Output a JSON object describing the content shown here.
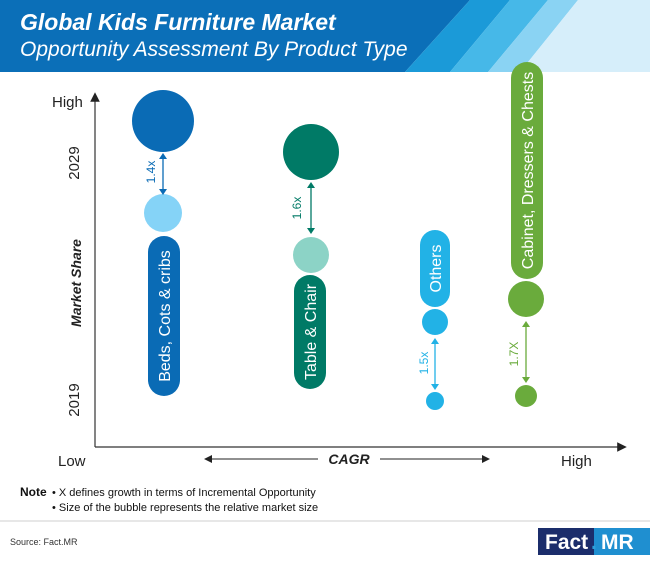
{
  "header": {
    "title": "Global Kids Furniture Market",
    "subtitle": "Opportunity Assessment By Product Type"
  },
  "chart_data": {
    "type": "bubble",
    "x_axis": {
      "label": "CAGR",
      "low_label": "Low",
      "high_label": "High"
    },
    "y_axis": {
      "label": "Market Share",
      "high_label": "High",
      "top_label": "2029",
      "bottom_label": "2019"
    },
    "series": [
      {
        "name": "Beds, Cots & cribs",
        "multiplier": "1.4x",
        "color": "#0a6bb5",
        "color_light": "#85d3f7",
        "color_pill": "#0a6bb5"
      },
      {
        "name": "Table & Chair",
        "multiplier": "1.6x",
        "color": "#007a66",
        "color_light": "#8cd3c6",
        "color_pill": "#007a66"
      },
      {
        "name": "Others",
        "multiplier": "1.5x",
        "color": "#22b2e6",
        "color_light": "#22b2e6",
        "color_pill": "#22b2e6"
      },
      {
        "name": "Cabinet, Dressers & Chests",
        "multiplier": "1.7X",
        "color": "#6aab3c",
        "color_light": "#6aab3c",
        "color_pill": "#6aab3c"
      }
    ]
  },
  "notes": {
    "label": "Note",
    "line1": "• X defines growth in terms of Incremental Opportunity",
    "line2": "• Size of the bubble represents the relative market size"
  },
  "source": "Source: Fact.MR",
  "logo": {
    "part1": "Fact",
    "dot": ".",
    "part2": "MR"
  }
}
